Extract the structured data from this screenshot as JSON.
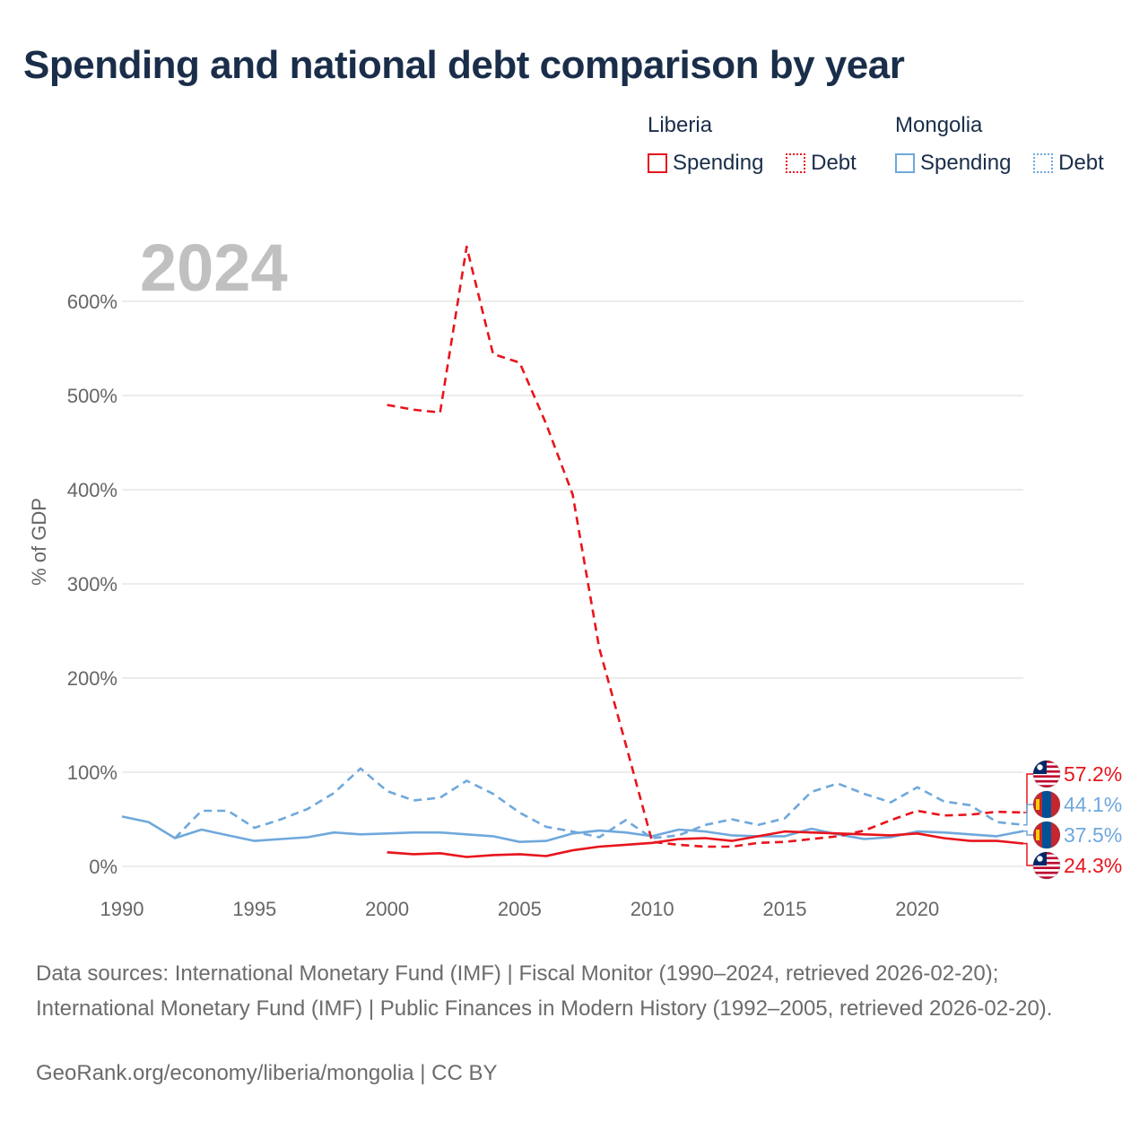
{
  "title": "Spending and national debt comparison by year",
  "legend": {
    "groups": [
      {
        "name": "Liberia",
        "color": "#e8141c",
        "items": [
          {
            "label": "Spending",
            "style": "solid"
          },
          {
            "label": "Debt",
            "style": "dotted"
          }
        ]
      },
      {
        "name": "Mongolia",
        "color": "#6fa8dc",
        "items": [
          {
            "label": "Spending",
            "style": "solid"
          },
          {
            "label": "Debt",
            "style": "dotted"
          }
        ]
      }
    ]
  },
  "chart_data": {
    "type": "line",
    "year_label": "2024",
    "ylabel": "% of GDP",
    "xlim": [
      1990,
      2024
    ],
    "ylim": [
      0,
      600
    ],
    "x_ticks": [
      1990,
      1995,
      2000,
      2005,
      2010,
      2015,
      2020
    ],
    "y_ticks": [
      0,
      100,
      200,
      300,
      400,
      500,
      600
    ],
    "y_tick_labels": [
      "0%",
      "100%",
      "200%",
      "300%",
      "400%",
      "500%",
      "600%"
    ],
    "series": [
      {
        "name": "Mongolia Spending",
        "country": "Mongolia",
        "kind": "Spending",
        "color": "#6fa8dc",
        "dash": "solid",
        "x": [
          1990,
          1991,
          1992,
          1993,
          1994,
          1995,
          1996,
          1997,
          1998,
          1999,
          2000,
          2001,
          2002,
          2003,
          2004,
          2005,
          2006,
          2007,
          2008,
          2009,
          2010,
          2011,
          2012,
          2013,
          2014,
          2015,
          2016,
          2017,
          2018,
          2019,
          2020,
          2021,
          2022,
          2023,
          2024
        ],
        "values": [
          53,
          47,
          30,
          39,
          33,
          27,
          29,
          31,
          36,
          34,
          35,
          36,
          36,
          34,
          32,
          26,
          27,
          35,
          38,
          36,
          32,
          39,
          37,
          33,
          32,
          32,
          40,
          34,
          29,
          31,
          37,
          36,
          34,
          32,
          37.5
        ]
      },
      {
        "name": "Mongolia Debt",
        "country": "Mongolia",
        "kind": "Debt",
        "color": "#6fa8dc",
        "dash": "dashed",
        "x": [
          1992,
          1993,
          1994,
          1995,
          1996,
          1997,
          1998,
          1999,
          2000,
          2001,
          2002,
          2003,
          2004,
          2005,
          2006,
          2007,
          2008,
          2009,
          2010,
          2011,
          2012,
          2013,
          2014,
          2015,
          2016,
          2017,
          2018,
          2019,
          2020,
          2021,
          2022,
          2023,
          2024
        ],
        "values": [
          30,
          59,
          59,
          41,
          50,
          61,
          78,
          104,
          80,
          70,
          73,
          91,
          77,
          57,
          42,
          37,
          31,
          49,
          30,
          33,
          44,
          50,
          44,
          51,
          79,
          88,
          77,
          68,
          84,
          69,
          65,
          47,
          44.1
        ]
      },
      {
        "name": "Liberia Spending",
        "country": "Liberia",
        "kind": "Spending",
        "color": "#e8141c",
        "dash": "solid",
        "x": [
          2000,
          2001,
          2002,
          2003,
          2004,
          2005,
          2006,
          2007,
          2008,
          2009,
          2010,
          2011,
          2012,
          2013,
          2014,
          2015,
          2016,
          2017,
          2018,
          2019,
          2020,
          2021,
          2022,
          2023,
          2024
        ],
        "values": [
          15,
          13,
          14,
          10,
          12,
          13,
          11,
          17,
          21,
          23,
          25,
          29,
          30,
          27,
          32,
          37,
          36,
          35,
          34,
          33,
          35,
          30,
          27,
          27,
          24.3
        ]
      },
      {
        "name": "Liberia Debt",
        "country": "Liberia",
        "kind": "Debt",
        "color": "#e8141c",
        "dash": "dashed",
        "x": [
          2000,
          2001,
          2002,
          2003,
          2004,
          2005,
          2006,
          2007,
          2008,
          2009,
          2010,
          2011,
          2012,
          2013,
          2014,
          2015,
          2016,
          2017,
          2018,
          2019,
          2020,
          2021,
          2022,
          2023,
          2024
        ],
        "values": [
          490,
          485,
          482,
          658,
          544,
          535,
          470,
          395,
          232,
          130,
          26,
          23,
          21,
          21,
          25,
          26,
          29,
          32,
          38,
          49,
          59,
          54,
          55,
          58,
          57.2
        ]
      }
    ],
    "end_labels": [
      {
        "text": "57.2%",
        "color": "#e8141c",
        "flag": "liberia"
      },
      {
        "text": "44.1%",
        "color": "#6fa8dc",
        "flag": "mongolia"
      },
      {
        "text": "37.5%",
        "color": "#6fa8dc",
        "flag": "mongolia"
      },
      {
        "text": "24.3%",
        "color": "#e8141c",
        "flag": "liberia"
      }
    ],
    "colors": {
      "grid": "#e6e6e6",
      "axis_text": "#666666",
      "year_watermark": "#c0c0c0",
      "liberia": "#e8141c",
      "mongolia": "#6fa8dc"
    }
  },
  "footer": {
    "sources": "Data sources: International Monetary Fund (IMF) | Fiscal Monitor (1990–2024, retrieved 2026-02-20); International Monetary Fund (IMF) | Public Finances in Modern History (1992–2005, retrieved 2026-02-20).",
    "url": "GeoRank.org/economy/liberia/mongolia | CC BY"
  }
}
